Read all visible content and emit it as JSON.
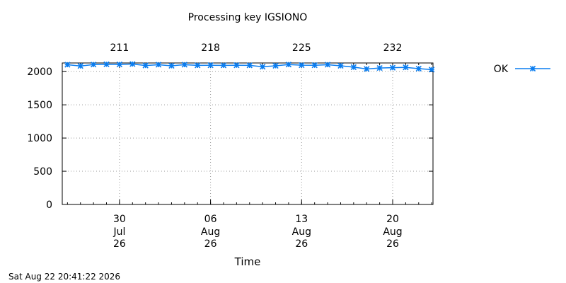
{
  "chart_data": {
    "type": "line",
    "title": "Processing key IGSIONO",
    "xlabel": "Time",
    "ylabel": "",
    "ylim": [
      0,
      2130
    ],
    "yticks": [
      0,
      500,
      1000,
      1500,
      2000
    ],
    "x_range_day_of_year": [
      206.6,
      235.1
    ],
    "x_ticks_bottom": [
      {
        "day": 211,
        "day_label": "30",
        "month_label": "Jul",
        "year_label": "26"
      },
      {
        "day": 218,
        "day_label": "06",
        "month_label": "Aug",
        "year_label": "26"
      },
      {
        "day": 225,
        "day_label": "13",
        "month_label": "Aug",
        "year_label": "26"
      },
      {
        "day": 232,
        "day_label": "20",
        "month_label": "Aug",
        "year_label": "26"
      }
    ],
    "x_ticks_top": [
      {
        "day": 211,
        "label": "211"
      },
      {
        "day": 218,
        "label": "218"
      },
      {
        "day": 225,
        "label": "225"
      },
      {
        "day": 232,
        "label": "232"
      }
    ],
    "grid": true,
    "legend_position": "top-right",
    "series": [
      {
        "name": "OK",
        "color": "#0a7df0",
        "marker": "asterisk",
        "x": [
          207,
          208,
          209,
          210,
          211,
          212,
          213,
          214,
          215,
          216,
          217,
          218,
          219,
          220,
          221,
          222,
          223,
          224,
          225,
          226,
          227,
          228,
          229,
          230,
          231,
          232,
          233,
          234,
          235
        ],
        "values": [
          2104,
          2085,
          2106,
          2110,
          2108,
          2114,
          2092,
          2104,
          2088,
          2104,
          2094,
          2096,
          2094,
          2096,
          2094,
          2073,
          2088,
          2106,
          2097,
          2096,
          2104,
          2088,
          2067,
          2040,
          2054,
          2059,
          2064,
          2045,
          2030
        ]
      }
    ]
  },
  "footer": {
    "timestamp": "Sat Aug 22 20:41:22 2026"
  }
}
